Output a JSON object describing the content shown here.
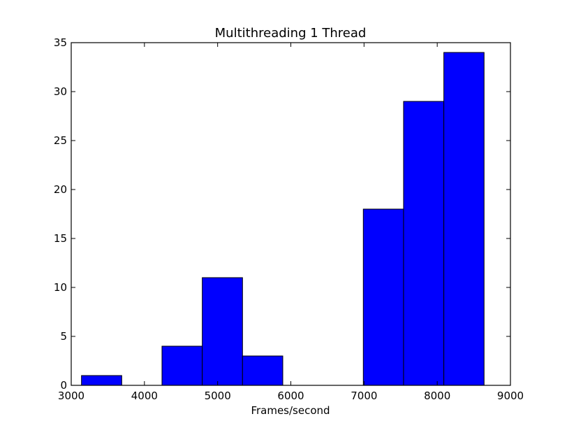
{
  "chart_data": {
    "type": "bar",
    "title": "Multithreading 1 Thread",
    "xlabel": "Frames/second",
    "ylabel": "",
    "xlim": [
      3000,
      9000
    ],
    "ylim": [
      0,
      35
    ],
    "x_ticks": [
      3000,
      4000,
      5000,
      6000,
      7000,
      8000,
      9000
    ],
    "y_ticks": [
      0,
      5,
      10,
      15,
      20,
      25,
      30,
      35
    ],
    "grid": false,
    "legend": "none",
    "bar_color": "#0000ff",
    "bins": [
      {
        "start": 3140,
        "end": 3690,
        "count": 1
      },
      {
        "start": 3690,
        "end": 4240,
        "count": 0
      },
      {
        "start": 4240,
        "end": 4790,
        "count": 4
      },
      {
        "start": 4790,
        "end": 5340,
        "count": 11
      },
      {
        "start": 5340,
        "end": 5890,
        "count": 3
      },
      {
        "start": 5890,
        "end": 6440,
        "count": 0
      },
      {
        "start": 6440,
        "end": 6990,
        "count": 0
      },
      {
        "start": 6990,
        "end": 7540,
        "count": 18
      },
      {
        "start": 7540,
        "end": 8090,
        "count": 29
      },
      {
        "start": 8090,
        "end": 8640,
        "count": 34
      }
    ]
  }
}
